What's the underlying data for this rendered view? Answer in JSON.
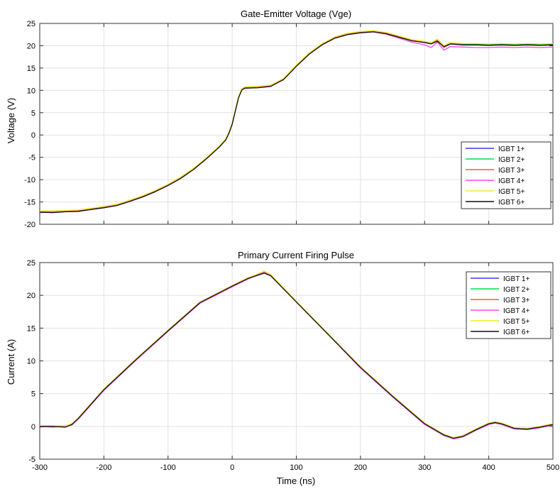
{
  "chart_data": [
    {
      "type": "line",
      "title": "Gate-Emitter Voltage (Vge)",
      "xlabel": "",
      "ylabel": "Voltage (V)",
      "xlim": [
        -300,
        500
      ],
      "ylim": [
        -20,
        25
      ],
      "xticks": [
        -300,
        -200,
        -100,
        0,
        100,
        200,
        300,
        400,
        500
      ],
      "yticks": [
        -20,
        -15,
        -10,
        -5,
        0,
        5,
        10,
        15,
        20,
        25
      ],
      "grid": true,
      "legend_position": "lower-right",
      "x": [
        -300,
        -280,
        -260,
        -240,
        -220,
        -200,
        -180,
        -160,
        -140,
        -120,
        -100,
        -80,
        -60,
        -40,
        -20,
        -10,
        -5,
        0,
        5,
        10,
        15,
        20,
        40,
        60,
        80,
        100,
        120,
        140,
        160,
        180,
        200,
        220,
        240,
        260,
        280,
        300,
        310,
        320,
        330,
        340,
        360,
        380,
        400,
        420,
        440,
        460,
        480,
        500
      ],
      "series": [
        {
          "name": "IGBT 1+",
          "color": "#3b3bff",
          "values": [
            -17.2,
            -17.2,
            -17.1,
            -17.0,
            -16.6,
            -16.2,
            -15.7,
            -14.8,
            -13.8,
            -12.6,
            -11.2,
            -9.6,
            -7.6,
            -5.2,
            -2.6,
            -1.0,
            0.5,
            2.5,
            5.5,
            8.5,
            10.2,
            10.6,
            10.7,
            11.0,
            12.5,
            15.5,
            18.2,
            20.3,
            21.8,
            22.6,
            23.0,
            23.2,
            22.8,
            22.0,
            21.2,
            20.8,
            20.5,
            21.2,
            19.8,
            20.5,
            20.3,
            20.3,
            20.2,
            20.3,
            20.2,
            20.3,
            20.2,
            20.3
          ]
        },
        {
          "name": "IGBT 2+",
          "color": "#00dd44",
          "values": [
            -17.1,
            -17.2,
            -17.0,
            -17.0,
            -16.5,
            -16.2,
            -15.6,
            -14.8,
            -13.7,
            -12.5,
            -11.1,
            -9.5,
            -7.5,
            -5.1,
            -2.5,
            -0.9,
            0.6,
            2.6,
            5.6,
            8.6,
            10.3,
            10.7,
            10.8,
            11.1,
            12.6,
            15.6,
            18.3,
            20.4,
            21.9,
            22.7,
            23.1,
            23.3,
            22.9,
            22.1,
            21.3,
            20.9,
            20.6,
            21.3,
            19.9,
            20.6,
            20.4,
            20.4,
            20.3,
            20.4,
            20.3,
            20.4,
            20.3,
            20.4
          ]
        },
        {
          "name": "IGBT 3+",
          "color": "#ff5555",
          "values": [
            -17.3,
            -17.1,
            -17.1,
            -16.9,
            -16.6,
            -16.1,
            -15.7,
            -14.7,
            -13.8,
            -12.6,
            -11.2,
            -9.6,
            -7.6,
            -5.2,
            -2.6,
            -1.0,
            0.5,
            2.5,
            5.5,
            8.5,
            10.2,
            10.6,
            10.7,
            11.0,
            12.5,
            15.5,
            18.2,
            20.3,
            21.8,
            22.6,
            23.0,
            23.2,
            22.8,
            22.0,
            21.2,
            20.8,
            20.4,
            21.4,
            19.6,
            20.4,
            20.2,
            20.2,
            20.1,
            20.2,
            20.1,
            20.2,
            20.1,
            20.2
          ]
        },
        {
          "name": "IGBT 4+",
          "color": "#ff44ff",
          "values": [
            -17.4,
            -17.3,
            -17.2,
            -17.1,
            -16.7,
            -16.3,
            -15.8,
            -14.9,
            -13.9,
            -12.7,
            -11.3,
            -9.7,
            -7.7,
            -5.3,
            -2.7,
            -1.1,
            0.4,
            2.4,
            5.4,
            8.4,
            10.1,
            10.5,
            10.6,
            10.9,
            12.4,
            15.4,
            18.1,
            20.2,
            21.7,
            22.5,
            22.9,
            23.1,
            22.6,
            21.7,
            20.8,
            20.2,
            19.6,
            20.8,
            19.0,
            19.8,
            19.7,
            19.6,
            19.6,
            19.7,
            19.6,
            19.7,
            19.6,
            19.7
          ]
        },
        {
          "name": "IGBT 5+",
          "color": "#eeee22",
          "values": [
            -17.0,
            -17.0,
            -16.9,
            -16.8,
            -16.4,
            -16.0,
            -15.5,
            -14.6,
            -13.6,
            -12.4,
            -11.0,
            -9.4,
            -7.4,
            -5.0,
            -2.4,
            -0.8,
            0.7,
            2.7,
            5.7,
            8.7,
            10.4,
            10.8,
            10.9,
            11.2,
            12.7,
            15.7,
            18.4,
            20.5,
            22.0,
            22.8,
            23.2,
            23.4,
            23.0,
            22.2,
            21.4,
            21.0,
            20.7,
            21.5,
            20.0,
            20.7,
            20.5,
            20.5,
            20.4,
            20.5,
            20.4,
            20.5,
            20.4,
            20.5
          ]
        },
        {
          "name": "IGBT 6+",
          "color": "#111111",
          "values": [
            -17.3,
            -17.4,
            -17.2,
            -17.1,
            -16.7,
            -16.3,
            -15.8,
            -14.9,
            -13.9,
            -12.7,
            -11.3,
            -9.7,
            -7.7,
            -5.3,
            -2.7,
            -1.1,
            0.4,
            2.4,
            5.4,
            8.4,
            10.1,
            10.5,
            10.6,
            10.9,
            12.4,
            15.4,
            18.1,
            20.2,
            21.7,
            22.5,
            22.9,
            23.1,
            22.7,
            21.9,
            21.1,
            20.7,
            20.4,
            21.0,
            19.8,
            20.4,
            20.2,
            20.2,
            20.1,
            20.2,
            20.1,
            20.2,
            20.1,
            20.2
          ]
        }
      ]
    },
    {
      "type": "line",
      "title": "Primary Current Firing Pulse",
      "xlabel": "Time (ns)",
      "ylabel": "Current (A)",
      "xlim": [
        -300,
        500
      ],
      "ylim": [
        -5,
        25
      ],
      "xticks": [
        -300,
        -200,
        -100,
        0,
        100,
        200,
        300,
        400,
        500
      ],
      "yticks": [
        -5,
        0,
        5,
        10,
        15,
        20,
        25
      ],
      "grid": true,
      "legend_position": "top-right",
      "x": [
        -300,
        -280,
        -260,
        -250,
        -240,
        -220,
        -200,
        -150,
        -100,
        -50,
        0,
        25,
        50,
        60,
        100,
        150,
        200,
        250,
        300,
        330,
        345,
        360,
        380,
        400,
        410,
        420,
        440,
        460,
        480,
        500
      ],
      "series": [
        {
          "name": "IGBT 1+",
          "color": "#3b3bff",
          "values": [
            0.0,
            0.0,
            0.0,
            0.3,
            1.2,
            3.4,
            5.6,
            10.2,
            14.6,
            18.9,
            21.4,
            22.6,
            23.4,
            23.0,
            19.0,
            14.0,
            9.0,
            4.6,
            0.4,
            -1.3,
            -1.8,
            -1.5,
            -0.5,
            0.4,
            0.6,
            0.4,
            -0.3,
            -0.4,
            -0.1,
            0.3
          ]
        },
        {
          "name": "IGBT 2+",
          "color": "#00dd44",
          "values": [
            0.1,
            0.0,
            0.1,
            0.4,
            1.3,
            3.5,
            5.7,
            10.3,
            14.7,
            19.0,
            21.5,
            22.7,
            23.5,
            23.1,
            19.1,
            14.1,
            9.1,
            4.7,
            0.5,
            -1.2,
            -1.7,
            -1.4,
            -0.4,
            0.5,
            0.7,
            0.5,
            -0.2,
            -0.3,
            0.0,
            0.4
          ]
        },
        {
          "name": "IGBT 3+",
          "color": "#ff5555",
          "values": [
            -0.1,
            0.1,
            0.0,
            0.3,
            1.2,
            3.4,
            5.6,
            10.2,
            14.6,
            18.9,
            21.4,
            22.6,
            23.4,
            23.0,
            19.0,
            14.0,
            9.0,
            4.6,
            0.4,
            -1.3,
            -1.8,
            -1.5,
            -0.5,
            0.4,
            0.6,
            0.4,
            -0.3,
            -0.4,
            -0.1,
            0.3
          ]
        },
        {
          "name": "IGBT 4+",
          "color": "#ff44ff",
          "values": [
            0.0,
            -0.1,
            0.0,
            0.2,
            1.1,
            3.3,
            5.5,
            10.1,
            14.5,
            18.8,
            21.3,
            22.5,
            23.6,
            23.1,
            19.0,
            14.0,
            8.9,
            4.5,
            0.3,
            -1.4,
            -1.9,
            -1.6,
            -0.6,
            0.3,
            0.5,
            0.3,
            -0.4,
            -0.5,
            -0.2,
            0.2
          ]
        },
        {
          "name": "IGBT 5+",
          "color": "#eeee22",
          "values": [
            0.1,
            0.1,
            0.1,
            0.4,
            1.3,
            3.5,
            5.7,
            10.3,
            14.7,
            19.0,
            21.5,
            22.7,
            23.7,
            23.2,
            19.1,
            14.1,
            9.1,
            4.7,
            0.5,
            -1.2,
            -1.7,
            -1.4,
            -0.4,
            0.5,
            0.7,
            0.5,
            -0.2,
            -0.3,
            0.0,
            0.4
          ]
        },
        {
          "name": "IGBT 6+",
          "color": "#111111",
          "values": [
            0.0,
            0.0,
            -0.1,
            0.3,
            1.2,
            3.4,
            5.6,
            10.2,
            14.6,
            18.9,
            21.4,
            22.6,
            23.4,
            23.0,
            19.0,
            14.0,
            9.0,
            4.6,
            0.4,
            -1.3,
            -1.8,
            -1.5,
            -0.5,
            0.4,
            0.6,
            0.4,
            -0.3,
            -0.4,
            -0.1,
            0.3
          ]
        }
      ]
    }
  ]
}
